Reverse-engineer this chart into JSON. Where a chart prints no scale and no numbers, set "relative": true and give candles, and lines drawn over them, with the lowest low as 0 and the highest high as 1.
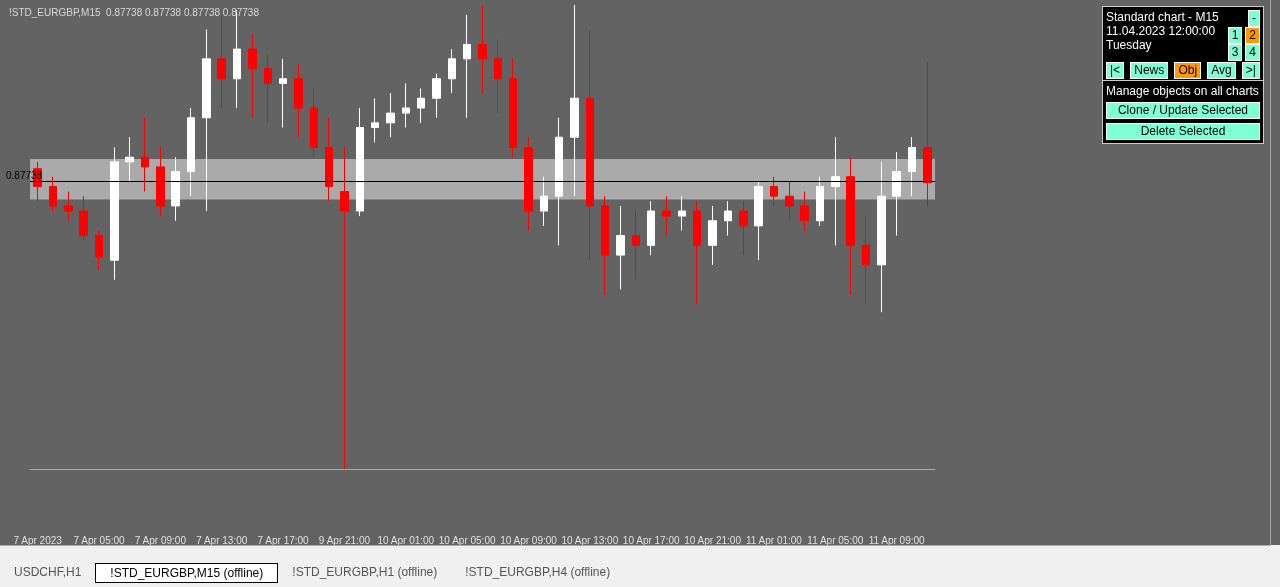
{
  "chart_data": {
    "type": "candlestick",
    "title": "!STD_EURGBP,M15  0.87738 0.87738 0.87738 0.87738",
    "relative": true,
    "categories": [
      "7 Apr 2023",
      null,
      null,
      null,
      "7 Apr 05:00",
      null,
      null,
      null,
      "7 Apr 09:00",
      null,
      null,
      null,
      "7 Apr 13:00",
      null,
      null,
      null,
      "7 Apr 17:00",
      null,
      null,
      null,
      "9 Apr 21:00",
      null,
      null,
      null,
      "10 Apr 01:00",
      null,
      null,
      null,
      "10 Apr 05:00",
      null,
      null,
      null,
      "10 Apr 09:00",
      null,
      null,
      null,
      "10 Apr 13:00",
      null,
      null,
      null,
      "10 Apr 17:00",
      null,
      null,
      null,
      "10 Apr 21:00",
      null,
      null,
      null,
      "11 Apr 01:00",
      null,
      null,
      null,
      "11 Apr 05:00",
      null,
      null,
      null,
      "11 Apr 09:00",
      null,
      null
    ],
    "ohlc": [
      [
        0.647,
        0.662,
        0.577,
        0.609
      ],
      [
        0.609,
        0.63,
        0.556,
        0.567
      ],
      [
        0.567,
        0.598,
        0.535,
        0.556
      ],
      [
        0.556,
        0.588,
        0.493,
        0.503
      ],
      [
        0.503,
        0.514,
        0.429,
        0.457
      ],
      [
        0.45,
        0.693,
        0.408,
        0.662
      ],
      [
        0.662,
        0.715,
        0.619,
        0.672
      ],
      [
        0.672,
        0.757,
        0.598,
        0.651
      ],
      [
        0.651,
        0.693,
        0.545,
        0.567
      ],
      [
        0.567,
        0.672,
        0.535,
        0.641
      ],
      [
        0.641,
        0.778,
        0.588,
        0.757
      ],
      [
        0.757,
        0.947,
        0.556,
        0.884
      ],
      [
        0.884,
        0.979,
        0.778,
        0.841
      ],
      [
        0.841,
        0.989,
        0.778,
        0.905
      ],
      [
        0.905,
        0.937,
        0.757,
        0.863
      ],
      [
        0.863,
        0.894,
        0.746,
        0.831
      ],
      [
        0.831,
        0.884,
        0.736,
        0.841
      ],
      [
        0.841,
        0.873,
        0.715,
        0.778
      ],
      [
        0.778,
        0.82,
        0.672,
        0.693
      ],
      [
        0.693,
        0.757,
        0.577,
        0.609
      ],
      [
        0.598,
        0.693,
        0,
        0.556
      ],
      [
        0.556,
        0.778,
        0.545,
        0.736
      ],
      [
        0.736,
        0.799,
        0.704,
        0.746
      ],
      [
        0.746,
        0.81,
        0.715,
        0.767
      ],
      [
        0.767,
        0.831,
        0.736,
        0.778
      ],
      [
        0.778,
        0.82,
        0.746,
        0.799
      ],
      [
        0.799,
        0.852,
        0.757,
        0.841
      ],
      [
        0.841,
        0.905,
        0.81,
        0.884
      ],
      [
        0.884,
        0.979,
        0.757,
        0.915
      ],
      [
        0.915,
        1,
        0.81,
        0.884
      ],
      [
        0.884,
        0.926,
        0.767,
        0.841
      ],
      [
        0.841,
        0.884,
        0.672,
        0.693
      ],
      [
        0.693,
        0.715,
        0.514,
        0.556
      ],
      [
        0.556,
        0.63,
        0.524,
        0.588
      ],
      [
        0.588,
        0.757,
        0.482,
        0.715
      ],
      [
        0.715,
        1,
        0.588,
        0.799
      ],
      [
        0.799,
        0.947,
        0.45,
        0.567
      ],
      [
        0.567,
        0.588,
        0.376,
        0.461
      ],
      [
        0.461,
        0.567,
        0.387,
        0.503
      ],
      [
        0.503,
        0.556,
        0.408,
        0.482
      ],
      [
        0.482,
        0.577,
        0.461,
        0.556
      ],
      [
        0.556,
        0.588,
        0.503,
        0.545
      ],
      [
        0.545,
        0.588,
        0.514,
        0.556
      ],
      [
        0.556,
        0.577,
        0.355,
        0.482
      ],
      [
        0.482,
        0.567,
        0.44,
        0.535
      ],
      [
        0.535,
        0.577,
        0.503,
        0.556
      ],
      [
        0.556,
        0.577,
        0.461,
        0.524
      ],
      [
        0.524,
        0.619,
        0.45,
        0.609
      ],
      [
        0.609,
        0.63,
        0.567,
        0.588
      ],
      [
        0.588,
        0.619,
        0.535,
        0.567
      ],
      [
        0.567,
        0.598,
        0.514,
        0.535
      ],
      [
        0.535,
        0.63,
        0.524,
        0.609
      ],
      [
        0.609,
        0.715,
        0.482,
        0.63
      ],
      [
        0.63,
        0.672,
        0.376,
        0.482
      ],
      [
        0.482,
        0.545,
        0.355,
        0.44
      ],
      [
        0.44,
        0.662,
        0.338,
        0.588
      ],
      [
        0.588,
        0.683,
        0.503,
        0.641
      ],
      [
        0.641,
        0.715,
        0.588,
        0.693
      ],
      [
        0.693,
        0.877,
        0.567,
        0.617
      ]
    ],
    "ref_lines": [
      {
        "axis": "y",
        "value": 0.617,
        "color": "#000000"
      }
    ],
    "bands": [
      {
        "axis": "y",
        "from": 0.581,
        "to": 0.668,
        "color": "#aaaaaa"
      }
    ],
    "annotations": [
      "0.87738",
      "Standard chart - M15",
      "11.04.2023   12:00:00",
      "Tuesday",
      "1",
      "2",
      "3",
      "4",
      "-",
      "|<",
      "News",
      "Obj",
      "Avg",
      ">|",
      "Manage objects on all charts",
      "Clone / Update Selected",
      "Delete Selected",
      "USDCHF,H1",
      "!STD_EURGBP,M15 (offline)",
      "!STD_EURGBP,H1 (offline)",
      "!STD_EURGBP,H4 (offline)"
    ]
  }
}
